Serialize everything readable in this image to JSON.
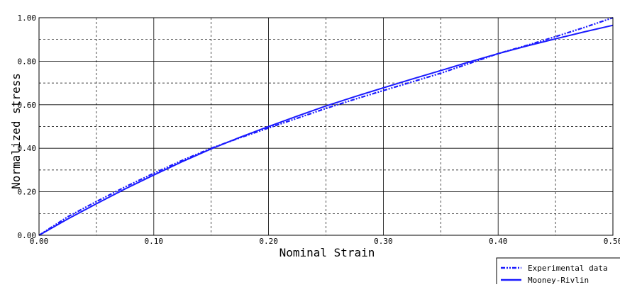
{
  "chart_data": {
    "type": "line",
    "title": "",
    "xlabel": "Nominal Strain",
    "ylabel": "Normalized stress",
    "xlim": [
      0,
      0.5
    ],
    "ylim": [
      0,
      1.0
    ],
    "x_ticks": [
      0.0,
      0.1,
      0.2,
      0.3,
      0.4,
      0.5
    ],
    "x_tick_labels": [
      "0.00",
      "0.10",
      "0.20",
      "0.30",
      "0.40",
      "0.50"
    ],
    "y_ticks": [
      0.0,
      0.2,
      0.4,
      0.6,
      0.8,
      1.0
    ],
    "y_tick_labels": [
      "0.00",
      "0.20",
      "0.40",
      "0.60",
      "0.80",
      "1.00"
    ],
    "grid": true,
    "legend_position": "bottom-right",
    "series": [
      {
        "name": "Experimental data",
        "style": "dash-dot-dot",
        "color": "#1a1aff",
        "x": [
          0.0,
          0.025,
          0.05,
          0.075,
          0.1,
          0.125,
          0.15,
          0.175,
          0.2,
          0.225,
          0.25,
          0.275,
          0.3,
          0.325,
          0.35,
          0.375,
          0.4,
          0.425,
          0.45,
          0.475,
          0.5
        ],
        "y": [
          0.0,
          0.085,
          0.155,
          0.222,
          0.285,
          0.345,
          0.4,
          0.448,
          0.493,
          0.538,
          0.583,
          0.625,
          0.665,
          0.705,
          0.745,
          0.79,
          0.835,
          0.873,
          0.913,
          0.955,
          1.0
        ]
      },
      {
        "name": "Mooney-Rivlin",
        "style": "solid",
        "color": "#1a1aff",
        "x": [
          0.0,
          0.025,
          0.05,
          0.075,
          0.1,
          0.125,
          0.15,
          0.175,
          0.2,
          0.225,
          0.25,
          0.275,
          0.3,
          0.325,
          0.35,
          0.375,
          0.4,
          0.425,
          0.45,
          0.475,
          0.5
        ],
        "y": [
          0.0,
          0.075,
          0.145,
          0.213,
          0.277,
          0.339,
          0.397,
          0.45,
          0.5,
          0.548,
          0.594,
          0.637,
          0.678,
          0.718,
          0.757,
          0.797,
          0.835,
          0.87,
          0.903,
          0.935,
          0.965
        ]
      }
    ]
  }
}
